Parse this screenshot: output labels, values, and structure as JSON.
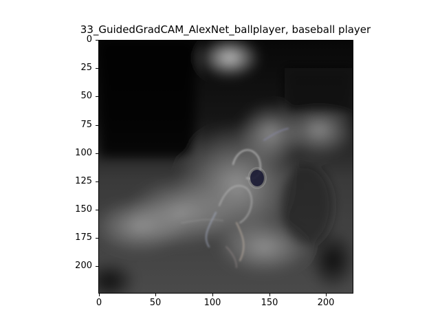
{
  "figure": {
    "title": "33_GuidedGradCAM_AlexNet_ballplayer, baseball player"
  },
  "axes": {
    "x_ticks": [
      "0",
      "50",
      "100",
      "150",
      "200"
    ],
    "y_ticks": [
      "0",
      "25",
      "50",
      "75",
      "100",
      "125",
      "150",
      "175",
      "200"
    ]
  },
  "image": {
    "description_icon": "guided-gradcam-heatmap-image",
    "palette": [
      "#000000",
      "#3a3a3a",
      "#7a7a7a",
      "#c8c8c8"
    ]
  }
}
